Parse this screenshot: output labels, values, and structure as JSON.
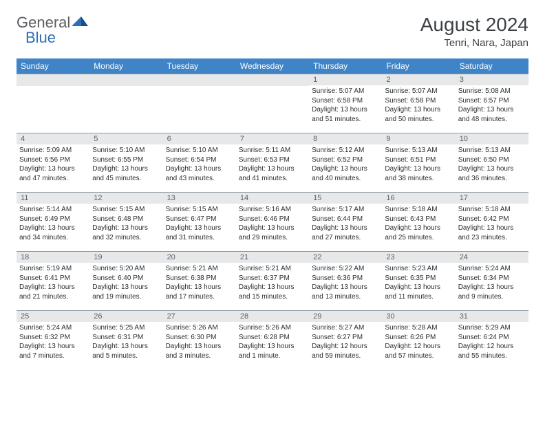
{
  "logo": {
    "text1": "General",
    "text2": "Blue"
  },
  "title": "August 2024",
  "location": "Tenri, Nara, Japan",
  "colors": {
    "header_bg": "#3e84c6",
    "header_fg": "#ffffff",
    "daynum_bg": "#e6e8ea",
    "border": "#8a97a3",
    "logo_blue": "#2d6fb5"
  },
  "day_names": [
    "Sunday",
    "Monday",
    "Tuesday",
    "Wednesday",
    "Thursday",
    "Friday",
    "Saturday"
  ],
  "weeks": [
    [
      {
        "n": "",
        "s": "",
        "u": "",
        "d": ""
      },
      {
        "n": "",
        "s": "",
        "u": "",
        "d": ""
      },
      {
        "n": "",
        "s": "",
        "u": "",
        "d": ""
      },
      {
        "n": "",
        "s": "",
        "u": "",
        "d": ""
      },
      {
        "n": "1",
        "s": "Sunrise: 5:07 AM",
        "u": "Sunset: 6:58 PM",
        "d": "Daylight: 13 hours and 51 minutes."
      },
      {
        "n": "2",
        "s": "Sunrise: 5:07 AM",
        "u": "Sunset: 6:58 PM",
        "d": "Daylight: 13 hours and 50 minutes."
      },
      {
        "n": "3",
        "s": "Sunrise: 5:08 AM",
        "u": "Sunset: 6:57 PM",
        "d": "Daylight: 13 hours and 48 minutes."
      }
    ],
    [
      {
        "n": "4",
        "s": "Sunrise: 5:09 AM",
        "u": "Sunset: 6:56 PM",
        "d": "Daylight: 13 hours and 47 minutes."
      },
      {
        "n": "5",
        "s": "Sunrise: 5:10 AM",
        "u": "Sunset: 6:55 PM",
        "d": "Daylight: 13 hours and 45 minutes."
      },
      {
        "n": "6",
        "s": "Sunrise: 5:10 AM",
        "u": "Sunset: 6:54 PM",
        "d": "Daylight: 13 hours and 43 minutes."
      },
      {
        "n": "7",
        "s": "Sunrise: 5:11 AM",
        "u": "Sunset: 6:53 PM",
        "d": "Daylight: 13 hours and 41 minutes."
      },
      {
        "n": "8",
        "s": "Sunrise: 5:12 AM",
        "u": "Sunset: 6:52 PM",
        "d": "Daylight: 13 hours and 40 minutes."
      },
      {
        "n": "9",
        "s": "Sunrise: 5:13 AM",
        "u": "Sunset: 6:51 PM",
        "d": "Daylight: 13 hours and 38 minutes."
      },
      {
        "n": "10",
        "s": "Sunrise: 5:13 AM",
        "u": "Sunset: 6:50 PM",
        "d": "Daylight: 13 hours and 36 minutes."
      }
    ],
    [
      {
        "n": "11",
        "s": "Sunrise: 5:14 AM",
        "u": "Sunset: 6:49 PM",
        "d": "Daylight: 13 hours and 34 minutes."
      },
      {
        "n": "12",
        "s": "Sunrise: 5:15 AM",
        "u": "Sunset: 6:48 PM",
        "d": "Daylight: 13 hours and 32 minutes."
      },
      {
        "n": "13",
        "s": "Sunrise: 5:15 AM",
        "u": "Sunset: 6:47 PM",
        "d": "Daylight: 13 hours and 31 minutes."
      },
      {
        "n": "14",
        "s": "Sunrise: 5:16 AM",
        "u": "Sunset: 6:46 PM",
        "d": "Daylight: 13 hours and 29 minutes."
      },
      {
        "n": "15",
        "s": "Sunrise: 5:17 AM",
        "u": "Sunset: 6:44 PM",
        "d": "Daylight: 13 hours and 27 minutes."
      },
      {
        "n": "16",
        "s": "Sunrise: 5:18 AM",
        "u": "Sunset: 6:43 PM",
        "d": "Daylight: 13 hours and 25 minutes."
      },
      {
        "n": "17",
        "s": "Sunrise: 5:18 AM",
        "u": "Sunset: 6:42 PM",
        "d": "Daylight: 13 hours and 23 minutes."
      }
    ],
    [
      {
        "n": "18",
        "s": "Sunrise: 5:19 AM",
        "u": "Sunset: 6:41 PM",
        "d": "Daylight: 13 hours and 21 minutes."
      },
      {
        "n": "19",
        "s": "Sunrise: 5:20 AM",
        "u": "Sunset: 6:40 PM",
        "d": "Daylight: 13 hours and 19 minutes."
      },
      {
        "n": "20",
        "s": "Sunrise: 5:21 AM",
        "u": "Sunset: 6:38 PM",
        "d": "Daylight: 13 hours and 17 minutes."
      },
      {
        "n": "21",
        "s": "Sunrise: 5:21 AM",
        "u": "Sunset: 6:37 PM",
        "d": "Daylight: 13 hours and 15 minutes."
      },
      {
        "n": "22",
        "s": "Sunrise: 5:22 AM",
        "u": "Sunset: 6:36 PM",
        "d": "Daylight: 13 hours and 13 minutes."
      },
      {
        "n": "23",
        "s": "Sunrise: 5:23 AM",
        "u": "Sunset: 6:35 PM",
        "d": "Daylight: 13 hours and 11 minutes."
      },
      {
        "n": "24",
        "s": "Sunrise: 5:24 AM",
        "u": "Sunset: 6:34 PM",
        "d": "Daylight: 13 hours and 9 minutes."
      }
    ],
    [
      {
        "n": "25",
        "s": "Sunrise: 5:24 AM",
        "u": "Sunset: 6:32 PM",
        "d": "Daylight: 13 hours and 7 minutes."
      },
      {
        "n": "26",
        "s": "Sunrise: 5:25 AM",
        "u": "Sunset: 6:31 PM",
        "d": "Daylight: 13 hours and 5 minutes."
      },
      {
        "n": "27",
        "s": "Sunrise: 5:26 AM",
        "u": "Sunset: 6:30 PM",
        "d": "Daylight: 13 hours and 3 minutes."
      },
      {
        "n": "28",
        "s": "Sunrise: 5:26 AM",
        "u": "Sunset: 6:28 PM",
        "d": "Daylight: 13 hours and 1 minute."
      },
      {
        "n": "29",
        "s": "Sunrise: 5:27 AM",
        "u": "Sunset: 6:27 PM",
        "d": "Daylight: 12 hours and 59 minutes."
      },
      {
        "n": "30",
        "s": "Sunrise: 5:28 AM",
        "u": "Sunset: 6:26 PM",
        "d": "Daylight: 12 hours and 57 minutes."
      },
      {
        "n": "31",
        "s": "Sunrise: 5:29 AM",
        "u": "Sunset: 6:24 PM",
        "d": "Daylight: 12 hours and 55 minutes."
      }
    ]
  ]
}
